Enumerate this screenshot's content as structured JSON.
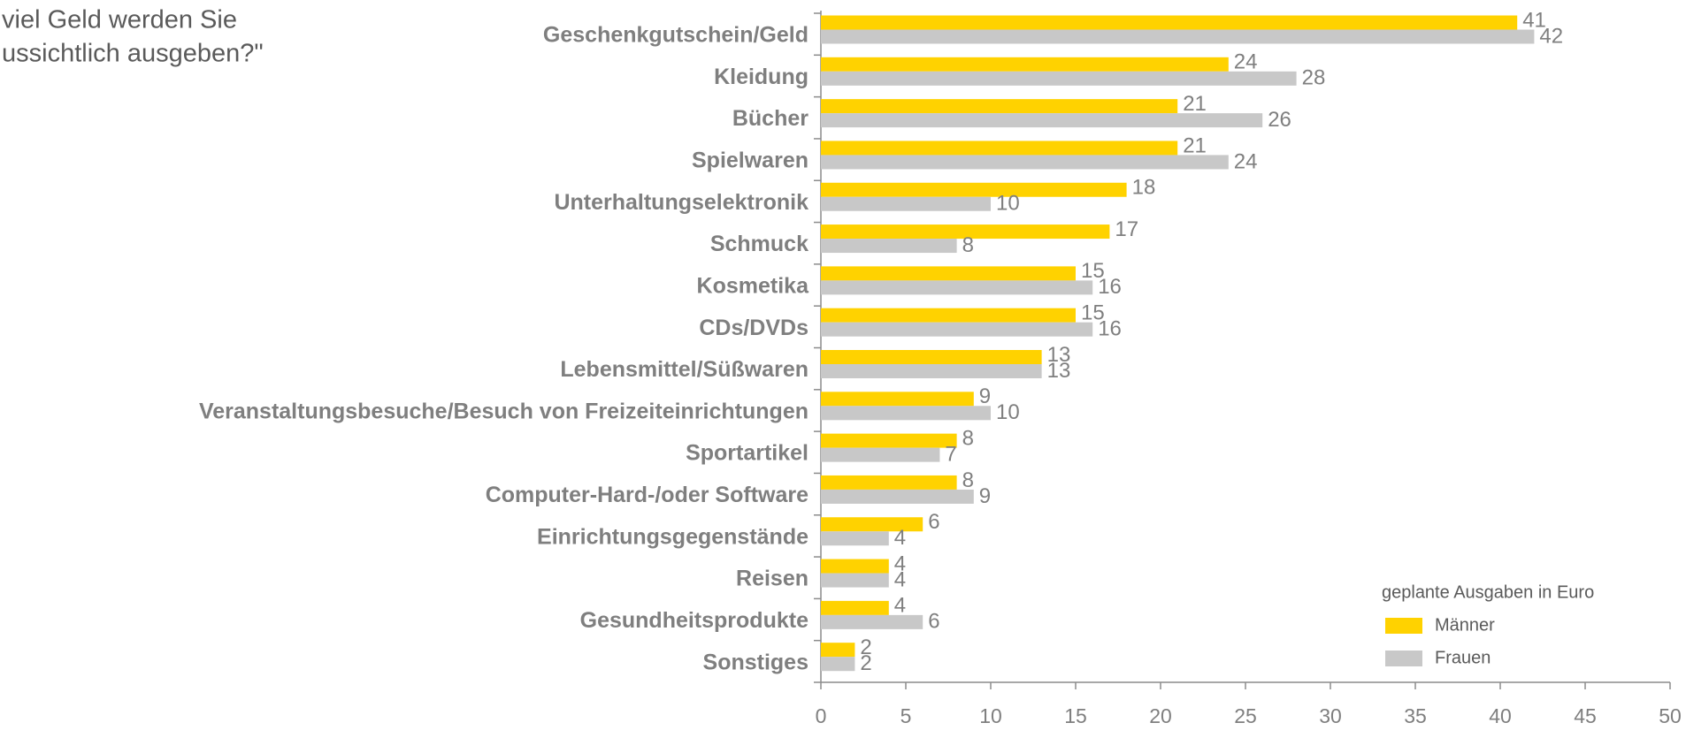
{
  "chart_data": {
    "type": "barh",
    "title_lines": [
      "viel Geld werden Sie",
      "ussichtlich ausgeben?\""
    ],
    "categories": [
      "Geschenkgutschein/Geld",
      "Kleidung",
      "Bücher",
      "Spielwaren",
      "Unterhaltungselektronik",
      "Schmuck",
      "Kosmetika",
      "CDs/DVDs",
      "Lebensmittel/Süßwaren",
      "Veranstaltungsbesuche/Besuch von Freizeiteinrichtungen",
      "Sportartikel",
      "Computer-Hard-/oder Software",
      "Einrichtungsgegenstände",
      "Reisen",
      "Gesundheitsprodukte",
      "Sonstiges"
    ],
    "series": [
      {
        "name": "Männer",
        "color": "#ffd200",
        "values": [
          41,
          24,
          21,
          21,
          18,
          17,
          15,
          15,
          13,
          9,
          8,
          8,
          6,
          4,
          4,
          2
        ]
      },
      {
        "name": "Frauen",
        "color": "#c8c8c8",
        "values": [
          42,
          28,
          26,
          24,
          10,
          8,
          16,
          16,
          13,
          10,
          7,
          9,
          4,
          4,
          6,
          2
        ]
      }
    ],
    "legend_title": "geplante Ausgaben in Euro",
    "xlim": [
      0,
      50
    ],
    "xticks": [
      0,
      5,
      10,
      15,
      20,
      25,
      30,
      35,
      40,
      45,
      50
    ],
    "legend": "lower right"
  }
}
